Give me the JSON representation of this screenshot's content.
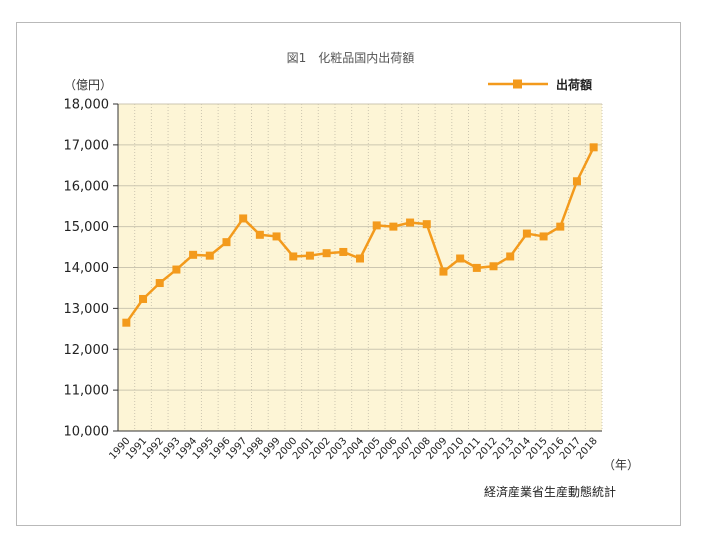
{
  "chart_data": {
    "type": "line",
    "title": "図1　化粧品国内出荷額",
    "y_unit_label": "（億円）",
    "x_unit_label": "（年）",
    "source": "経済産業省生産動態統計",
    "ylim": [
      10000,
      18000
    ],
    "y_ticks": [
      "10,000",
      "11,000",
      "12,000",
      "13,000",
      "14,000",
      "15,000",
      "16,000",
      "17,000",
      "18,000"
    ],
    "grid": true,
    "legend_position": "top-right",
    "colors": {
      "line": "#f39a1c",
      "plot_bg": "#fdf5d6",
      "grid": "#ccc6b0"
    },
    "categories": [
      "1990",
      "1991",
      "1992",
      "1993",
      "1994",
      "1995",
      "1996",
      "1997",
      "1998",
      "1999",
      "2000",
      "2001",
      "2002",
      "2003",
      "2004",
      "2005",
      "2006",
      "2007",
      "2008",
      "2009",
      "2010",
      "2011",
      "2012",
      "2013",
      "2014",
      "2015",
      "2016",
      "2017",
      "2018"
    ],
    "series": [
      {
        "name": "出荷額",
        "values": [
          12650,
          13230,
          13620,
          13950,
          14310,
          14290,
          14620,
          15200,
          14800,
          14760,
          14270,
          14290,
          14350,
          14380,
          14220,
          15030,
          15000,
          15100,
          15060,
          13900,
          14220,
          13990,
          14030,
          14270,
          14830,
          14760,
          15000,
          16110,
          16940
        ]
      }
    ]
  }
}
